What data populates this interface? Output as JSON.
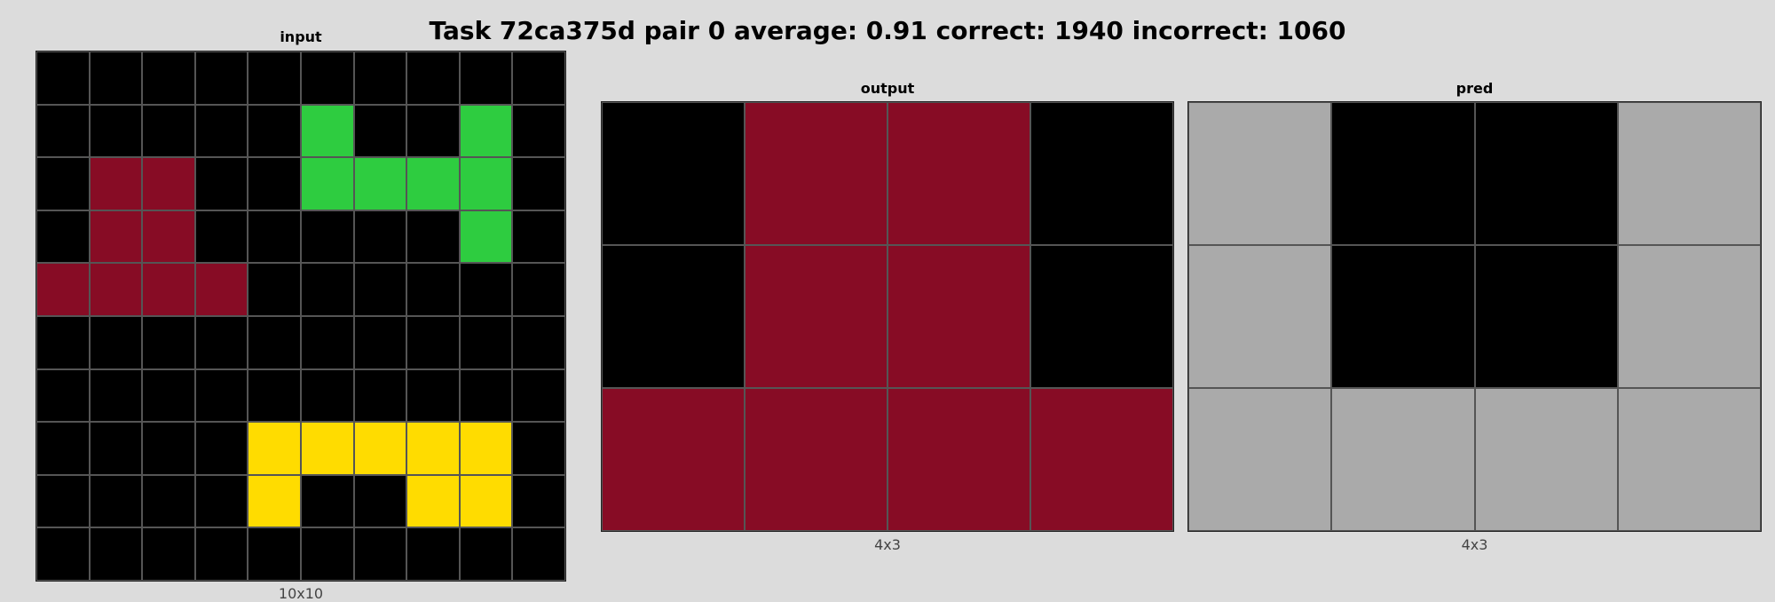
{
  "title": "Task 72ca375d pair 0 average: 0.91 correct: 1940 incorrect: 1060",
  "palette": {
    "0": "#000000",
    "3": "#2ECC40",
    "4": "#FFDC00",
    "5": "#AAAAAA",
    "9": "#870C25"
  },
  "panels": {
    "input": {
      "label": "input",
      "dims": "10x10",
      "grid": [
        [
          0,
          0,
          0,
          0,
          0,
          0,
          0,
          0,
          0,
          0
        ],
        [
          0,
          0,
          0,
          0,
          0,
          3,
          0,
          0,
          3,
          0
        ],
        [
          0,
          9,
          9,
          0,
          0,
          3,
          3,
          3,
          3,
          0
        ],
        [
          0,
          9,
          9,
          0,
          0,
          0,
          0,
          0,
          3,
          0
        ],
        [
          9,
          9,
          9,
          9,
          0,
          0,
          0,
          0,
          0,
          0
        ],
        [
          0,
          0,
          0,
          0,
          0,
          0,
          0,
          0,
          0,
          0
        ],
        [
          0,
          0,
          0,
          0,
          0,
          0,
          0,
          0,
          0,
          0
        ],
        [
          0,
          0,
          0,
          0,
          4,
          4,
          4,
          4,
          4,
          0
        ],
        [
          0,
          0,
          0,
          0,
          4,
          0,
          0,
          4,
          4,
          0
        ],
        [
          0,
          0,
          0,
          0,
          0,
          0,
          0,
          0,
          0,
          0
        ]
      ]
    },
    "output": {
      "label": "output",
      "dims": "4x3",
      "grid": [
        [
          0,
          9,
          9,
          0
        ],
        [
          0,
          9,
          9,
          0
        ],
        [
          9,
          9,
          9,
          9
        ]
      ]
    },
    "pred": {
      "label": "pred",
      "dims": "4x3",
      "grid": [
        [
          5,
          0,
          0,
          5
        ],
        [
          5,
          0,
          0,
          5
        ],
        [
          5,
          5,
          5,
          5
        ]
      ]
    }
  }
}
